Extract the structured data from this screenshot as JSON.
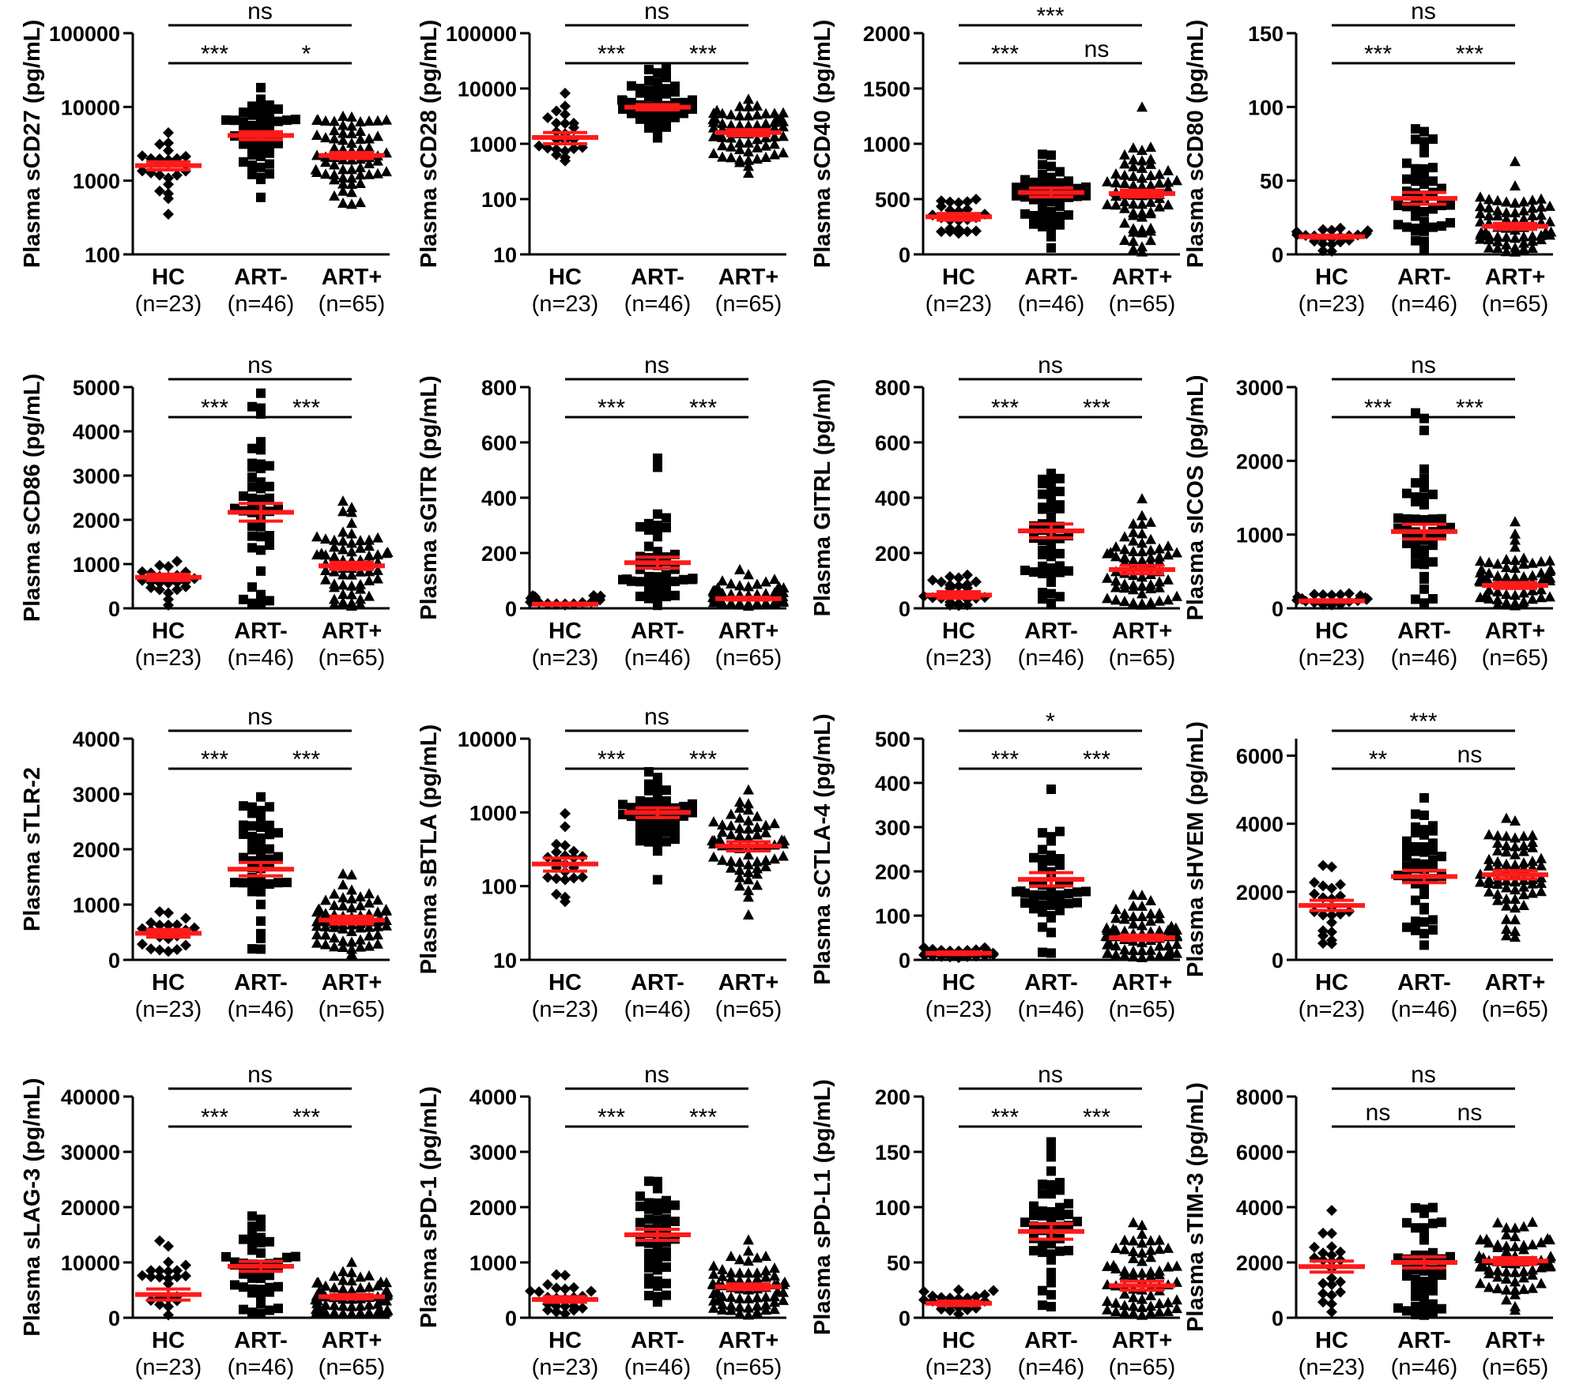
{
  "groups": [
    "HC",
    "ART-",
    "ART+"
  ],
  "group_counts": [
    "(n=23)",
    "(n=46)",
    "(n=65)"
  ],
  "colors": {
    "mean_bar": "#ff1a1a",
    "points": "#000000",
    "axis": "#000000"
  },
  "chart_data": [
    {
      "type": "scatter",
      "ylabel": "Plasma sCD27 (pg/mL)",
      "scale": "log",
      "ylim": [
        100,
        100000
      ],
      "ticks": [
        100,
        1000,
        10000,
        100000
      ],
      "tick_labels": [
        "100",
        "1000",
        "10000",
        "100000"
      ],
      "means": [
        1600,
        4100,
        2200
      ],
      "sems": [
        200,
        500,
        200
      ],
      "n": [
        23,
        46,
        65
      ],
      "comparisons": [
        {
          "from": 0,
          "to": 1,
          "label": "***",
          "level": 1
        },
        {
          "from": 1,
          "to": 2,
          "label": "*",
          "level": 1
        },
        {
          "from": 0,
          "to": 2,
          "label": "ns",
          "level": 2
        }
      ]
    },
    {
      "type": "scatter",
      "ylabel": "Plasma sCD28 (pg/mL)",
      "scale": "log",
      "ylim": [
        10,
        100000
      ],
      "ticks": [
        10,
        100,
        1000,
        10000,
        100000
      ],
      "tick_labels": [
        "10",
        "100",
        "1000",
        "10000",
        "100000"
      ],
      "means": [
        1300,
        4600,
        1600
      ],
      "sems": [
        300,
        500,
        200
      ],
      "n": [
        23,
        46,
        65
      ],
      "comparisons": [
        {
          "from": 0,
          "to": 1,
          "label": "***",
          "level": 1
        },
        {
          "from": 1,
          "to": 2,
          "label": "***",
          "level": 1
        },
        {
          "from": 0,
          "to": 2,
          "label": "ns",
          "level": 2
        }
      ]
    },
    {
      "type": "scatter",
      "ylabel": "Plasma sCD40 (pg/mL)",
      "scale": "linear",
      "ylim": [
        0,
        2000
      ],
      "ticks": [
        0,
        500,
        1000,
        1500,
        2000
      ],
      "tick_labels": [
        "0",
        "500",
        "1000",
        "1500",
        "2000"
      ],
      "means": [
        340,
        560,
        550
      ],
      "sems": [
        30,
        40,
        30
      ],
      "n": [
        23,
        46,
        65
      ],
      "comparisons": [
        {
          "from": 0,
          "to": 1,
          "label": "***",
          "level": 1
        },
        {
          "from": 1,
          "to": 2,
          "label": "ns",
          "level": 1
        },
        {
          "from": 0,
          "to": 2,
          "label": "***",
          "level": 2
        }
      ]
    },
    {
      "type": "scatter",
      "ylabel": "Plasma sCD80 (pg/mL)",
      "scale": "linear",
      "ylim": [
        0,
        150
      ],
      "ticks": [
        0,
        50,
        100,
        150
      ],
      "tick_labels": [
        "0",
        "50",
        "100",
        "150"
      ],
      "means": [
        12,
        38,
        19
      ],
      "sems": [
        1,
        4,
        2
      ],
      "n": [
        23,
        46,
        65
      ],
      "comparisons": [
        {
          "from": 0,
          "to": 1,
          "label": "***",
          "level": 1
        },
        {
          "from": 1,
          "to": 2,
          "label": "***",
          "level": 1
        },
        {
          "from": 0,
          "to": 2,
          "label": "ns",
          "level": 2
        }
      ]
    },
    {
      "type": "scatter",
      "ylabel": "Plasma sCD86 (pg/mL)",
      "scale": "linear",
      "ylim": [
        0,
        5000
      ],
      "ticks": [
        0,
        1000,
        2000,
        3000,
        4000,
        5000
      ],
      "tick_labels": [
        "0",
        "1000",
        "2000",
        "3000",
        "4000",
        "5000"
      ],
      "means": [
        700,
        2170,
        960
      ],
      "sems": [
        70,
        200,
        80
      ],
      "n": [
        23,
        46,
        65
      ],
      "comparisons": [
        {
          "from": 0,
          "to": 1,
          "label": "***",
          "level": 1
        },
        {
          "from": 1,
          "to": 2,
          "label": "***",
          "level": 1
        },
        {
          "from": 0,
          "to": 2,
          "label": "ns",
          "level": 2
        }
      ]
    },
    {
      "type": "scatter",
      "ylabel": "Plasma sGITR (pg/mL)",
      "scale": "linear",
      "ylim": [
        0,
        800
      ],
      "ticks": [
        0,
        200,
        400,
        600,
        800
      ],
      "tick_labels": [
        "0",
        "200",
        "400",
        "600",
        "800"
      ],
      "means": [
        15,
        165,
        35
      ],
      "sems": [
        4,
        20,
        5
      ],
      "n": [
        23,
        46,
        65
      ],
      "comparisons": [
        {
          "from": 0,
          "to": 1,
          "label": "***",
          "level": 1
        },
        {
          "from": 1,
          "to": 2,
          "label": "***",
          "level": 1
        },
        {
          "from": 0,
          "to": 2,
          "label": "ns",
          "level": 2
        }
      ]
    },
    {
      "type": "scatter",
      "ylabel": "Plasma GITRL (pg/ml)",
      "scale": "linear",
      "ylim": [
        0,
        800
      ],
      "ticks": [
        0,
        200,
        400,
        600,
        800
      ],
      "tick_labels": [
        "0",
        "200",
        "400",
        "600",
        "800"
      ],
      "means": [
        48,
        280,
        140
      ],
      "sems": [
        12,
        25,
        15
      ],
      "n": [
        23,
        46,
        65
      ],
      "comparisons": [
        {
          "from": 0,
          "to": 1,
          "label": "***",
          "level": 1
        },
        {
          "from": 1,
          "to": 2,
          "label": "***",
          "level": 1
        },
        {
          "from": 0,
          "to": 2,
          "label": "ns",
          "level": 2
        }
      ]
    },
    {
      "type": "scatter",
      "ylabel": "Plasma sICOS (pg/mL)",
      "scale": "linear",
      "ylim": [
        0,
        3000
      ],
      "ticks": [
        0,
        1000,
        2000,
        3000
      ],
      "tick_labels": [
        "0",
        "1000",
        "2000",
        "3000"
      ],
      "means": [
        100,
        1040,
        310
      ],
      "sems": [
        15,
        100,
        40
      ],
      "n": [
        23,
        46,
        65
      ],
      "comparisons": [
        {
          "from": 0,
          "to": 1,
          "label": "***",
          "level": 1
        },
        {
          "from": 1,
          "to": 2,
          "label": "***",
          "level": 1
        },
        {
          "from": 0,
          "to": 2,
          "label": "ns",
          "level": 2
        }
      ]
    },
    {
      "type": "scatter",
      "ylabel": "Plasma sTLR-2",
      "scale": "linear",
      "ylim": [
        0,
        4000
      ],
      "ticks": [
        0,
        1000,
        2000,
        3000,
        4000
      ],
      "tick_labels": [
        "0",
        "1000",
        "2000",
        "3000",
        "4000"
      ],
      "means": [
        480,
        1640,
        720
      ],
      "sems": [
        70,
        120,
        70
      ],
      "n": [
        23,
        46,
        65
      ],
      "comparisons": [
        {
          "from": 0,
          "to": 1,
          "label": "***",
          "level": 1
        },
        {
          "from": 1,
          "to": 2,
          "label": "***",
          "level": 1
        },
        {
          "from": 0,
          "to": 2,
          "label": "ns",
          "level": 2
        }
      ]
    },
    {
      "type": "scatter",
      "ylabel": "Plasma sBTLA (pg/mL)",
      "scale": "log",
      "ylim": [
        10,
        10000
      ],
      "ticks": [
        10,
        100,
        1000,
        10000
      ],
      "tick_labels": [
        "10",
        "100",
        "1000",
        "10000"
      ],
      "means": [
        200,
        1000,
        350
      ],
      "sems": [
        40,
        150,
        50
      ],
      "n": [
        23,
        46,
        65
      ],
      "comparisons": [
        {
          "from": 0,
          "to": 1,
          "label": "***",
          "level": 1
        },
        {
          "from": 1,
          "to": 2,
          "label": "***",
          "level": 1
        },
        {
          "from": 0,
          "to": 2,
          "label": "ns",
          "level": 2
        }
      ]
    },
    {
      "type": "scatter",
      "ylabel": "Plasma sCTLA-4 (pg/mL)",
      "scale": "linear",
      "ylim": [
        0,
        500
      ],
      "ticks": [
        0,
        100,
        200,
        300,
        400,
        500
      ],
      "tick_labels": [
        "0",
        "100",
        "200",
        "300",
        "400",
        "500"
      ],
      "means": [
        15,
        182,
        50
      ],
      "sems": [
        3,
        15,
        6
      ],
      "n": [
        23,
        46,
        65
      ],
      "comparisons": [
        {
          "from": 0,
          "to": 1,
          "label": "***",
          "level": 1
        },
        {
          "from": 1,
          "to": 2,
          "label": "***",
          "level": 1
        },
        {
          "from": 0,
          "to": 2,
          "label": "*",
          "level": 2
        }
      ]
    },
    {
      "type": "scatter",
      "ylabel": "Plasma sHVEM (pg/mL)",
      "scale": "linear",
      "ylim": [
        0,
        6500
      ],
      "ticks": [
        0,
        2000,
        4000,
        6000
      ],
      "tick_labels": [
        "0",
        "2000",
        "4000",
        "6000"
      ],
      "means": [
        1600,
        2450,
        2500
      ],
      "sems": [
        150,
        180,
        120
      ],
      "n": [
        23,
        46,
        65
      ],
      "comparisons": [
        {
          "from": 0,
          "to": 1,
          "label": "**",
          "level": 1
        },
        {
          "from": 1,
          "to": 2,
          "label": "ns",
          "level": 1
        },
        {
          "from": 0,
          "to": 2,
          "label": "***",
          "level": 2
        }
      ]
    },
    {
      "type": "scatter",
      "ylabel": "Plasma sLAG-3 (pg/mL)",
      "scale": "linear",
      "ylim": [
        0,
        40000
      ],
      "ticks": [
        0,
        10000,
        20000,
        30000,
        40000
      ],
      "tick_labels": [
        "0",
        "10000",
        "20000",
        "30000",
        "40000"
      ],
      "means": [
        4200,
        9300,
        3800
      ],
      "sems": [
        1000,
        900,
        400
      ],
      "n": [
        23,
        46,
        65
      ],
      "comparisons": [
        {
          "from": 0,
          "to": 1,
          "label": "***",
          "level": 1
        },
        {
          "from": 1,
          "to": 2,
          "label": "***",
          "level": 1
        },
        {
          "from": 0,
          "to": 2,
          "label": "ns",
          "level": 2
        }
      ]
    },
    {
      "type": "scatter",
      "ylabel": "Plasma sPD-1 (pg/mL)",
      "scale": "linear",
      "ylim": [
        0,
        4000
      ],
      "ticks": [
        0,
        1000,
        2000,
        3000,
        4000
      ],
      "tick_labels": [
        "0",
        "1000",
        "2000",
        "3000",
        "4000"
      ],
      "means": [
        330,
        1500,
        560
      ],
      "sems": [
        50,
        100,
        50
      ],
      "n": [
        23,
        46,
        65
      ],
      "comparisons": [
        {
          "from": 0,
          "to": 1,
          "label": "***",
          "level": 1
        },
        {
          "from": 1,
          "to": 2,
          "label": "***",
          "level": 1
        },
        {
          "from": 0,
          "to": 2,
          "label": "ns",
          "level": 2
        }
      ]
    },
    {
      "type": "scatter",
      "ylabel": "Plasma sPD-L1 (pg/mL)",
      "scale": "linear",
      "ylim": [
        0,
        200
      ],
      "ticks": [
        0,
        50,
        100,
        150,
        200
      ],
      "tick_labels": [
        "0",
        "50",
        "100",
        "150",
        "200"
      ],
      "means": [
        13,
        78,
        29
      ],
      "sems": [
        2,
        7,
        4
      ],
      "n": [
        23,
        46,
        65
      ],
      "comparisons": [
        {
          "from": 0,
          "to": 1,
          "label": "***",
          "level": 1
        },
        {
          "from": 1,
          "to": 2,
          "label": "***",
          "level": 1
        },
        {
          "from": 0,
          "to": 2,
          "label": "ns",
          "level": 2
        }
      ]
    },
    {
      "type": "scatter",
      "ylabel": "Plasma sTIM-3 (pg/mL)",
      "scale": "linear",
      "ylim": [
        0,
        8000
      ],
      "ticks": [
        0,
        2000,
        4000,
        6000,
        8000
      ],
      "tick_labels": [
        "0",
        "2000",
        "4000",
        "6000",
        "8000"
      ],
      "means": [
        1850,
        2000,
        2050
      ],
      "sems": [
        200,
        200,
        120
      ],
      "n": [
        23,
        46,
        65
      ],
      "comparisons": [
        {
          "from": 0,
          "to": 1,
          "label": "ns",
          "level": 1
        },
        {
          "from": 1,
          "to": 2,
          "label": "ns",
          "level": 1
        },
        {
          "from": 0,
          "to": 2,
          "label": "ns",
          "level": 2
        }
      ]
    }
  ]
}
